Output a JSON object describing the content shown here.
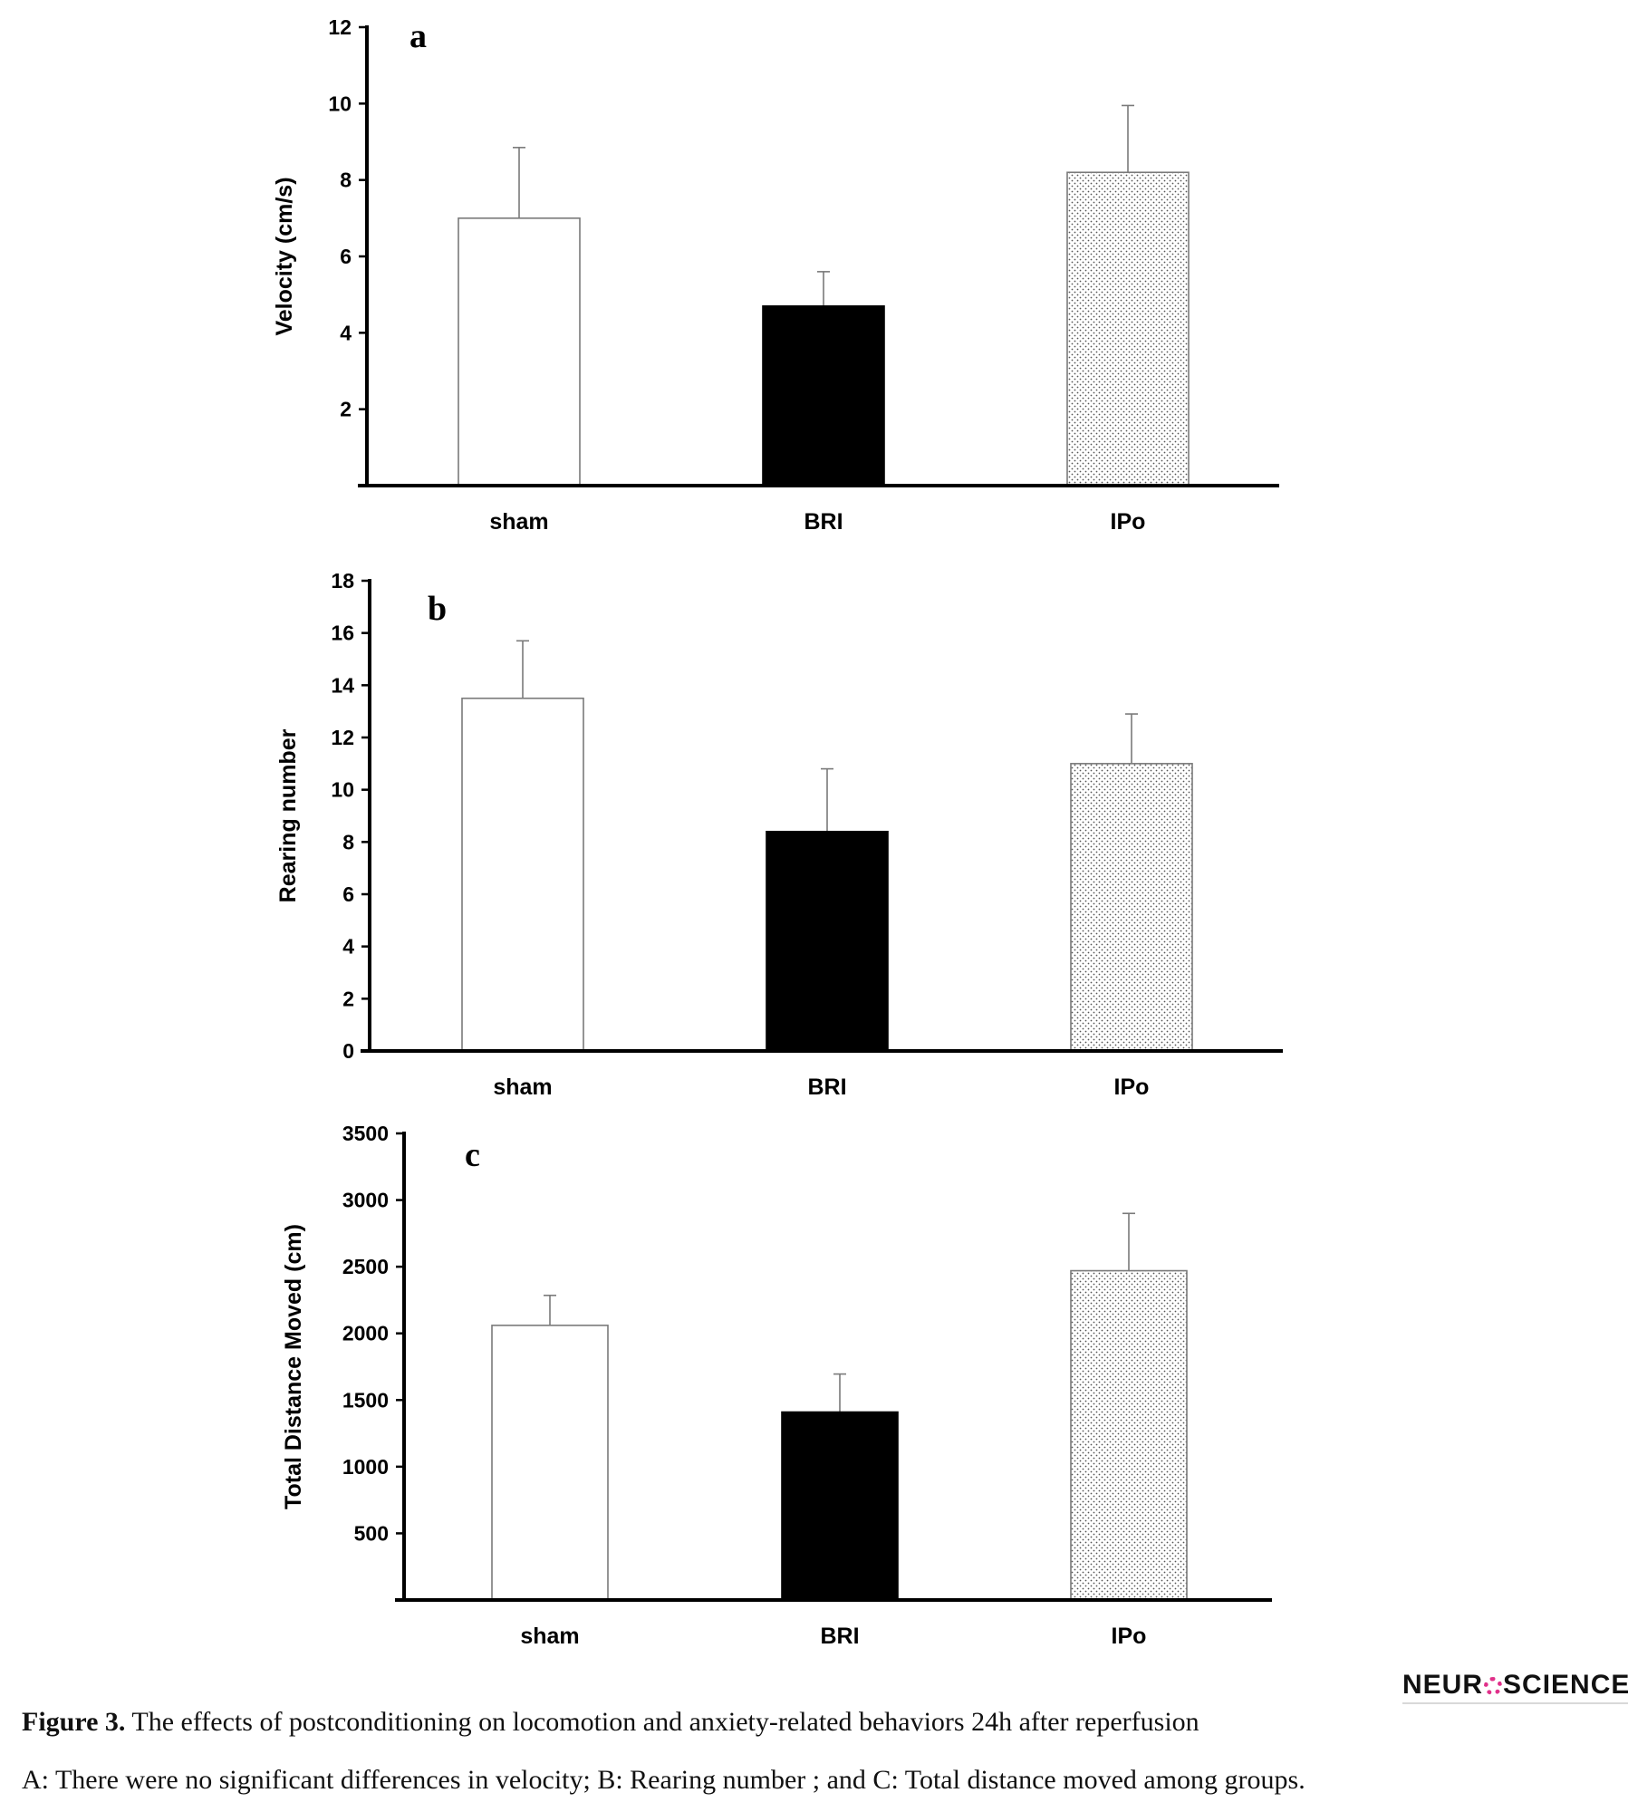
{
  "chart_data": [
    {
      "type": "bar",
      "panel": "a",
      "ylabel": "Velocity (cm/s)",
      "xlabel": "",
      "categories": [
        "sham",
        "BRI",
        "IPo"
      ],
      "values": [
        7.0,
        4.7,
        8.2
      ],
      "errors": [
        1.85,
        0.9,
        1.75
      ],
      "ylim": [
        0,
        12
      ],
      "yticks": [
        2,
        4,
        6,
        8,
        10,
        12
      ],
      "bar_fills": [
        "white",
        "black",
        "dotted"
      ],
      "grid": false,
      "legend": "none"
    },
    {
      "type": "bar",
      "panel": "b",
      "ylabel": "Rearing number",
      "xlabel": "",
      "categories": [
        "sham",
        "BRI",
        "IPo"
      ],
      "values": [
        13.5,
        8.4,
        11.0
      ],
      "errors": [
        2.2,
        2.4,
        1.9
      ],
      "ylim": [
        0,
        18
      ],
      "yticks": [
        0,
        2,
        4,
        6,
        8,
        10,
        12,
        14,
        16,
        18
      ],
      "bar_fills": [
        "white",
        "black",
        "dotted"
      ],
      "grid": false,
      "legend": "none"
    },
    {
      "type": "bar",
      "panel": "c",
      "ylabel": "Total Distance Moved (cm)",
      "xlabel": "",
      "categories": [
        "sham",
        "BRI",
        "IPo"
      ],
      "values": [
        2060,
        1410,
        2470
      ],
      "errors": [
        225,
        285,
        430
      ],
      "ylim": [
        0,
        3500
      ],
      "yticks": [
        500,
        1000,
        1500,
        2000,
        2500,
        3000,
        3500
      ],
      "bar_fills": [
        "white",
        "black",
        "dotted"
      ],
      "grid": false,
      "legend": "none"
    }
  ],
  "caption": {
    "figure_label": "Figure 3.",
    "title": "The effects of postconditioning on locomotion and anxiety-related behaviors 24h after reperfusion",
    "note": "A: There were no significant differences in velocity; B: Rearing number ; and C: Total distance moved among groups."
  },
  "logo": {
    "left_text": "NEUR",
    "right_text": "SCIENCE"
  }
}
